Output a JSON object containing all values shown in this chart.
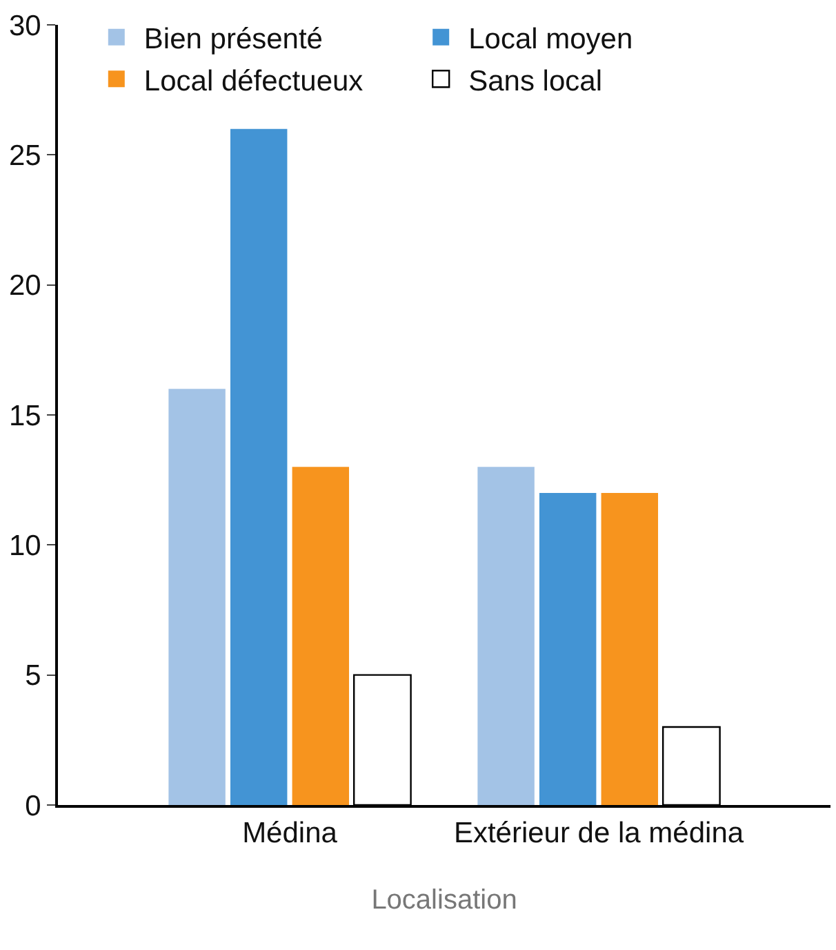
{
  "chart_data": {
    "type": "bar",
    "xlabel": "Localisation",
    "categories": [
      "Médina",
      "Extérieur de la médina"
    ],
    "series": [
      {
        "name": "Bien présenté",
        "color": "#a3c3e6",
        "values": [
          16,
          13
        ]
      },
      {
        "name": "Local moyen",
        "color": "#4394d4",
        "values": [
          26,
          12
        ]
      },
      {
        "name": "Local défectueux",
        "color": "#f7941e",
        "values": [
          13,
          12
        ]
      },
      {
        "name": "Sans local",
        "color": "#ffffff",
        "values": [
          5,
          3
        ]
      }
    ],
    "ylim": [
      0,
      30
    ],
    "yticks": [
      0,
      5,
      10,
      15,
      20,
      25,
      30
    ],
    "legend": "top left"
  }
}
